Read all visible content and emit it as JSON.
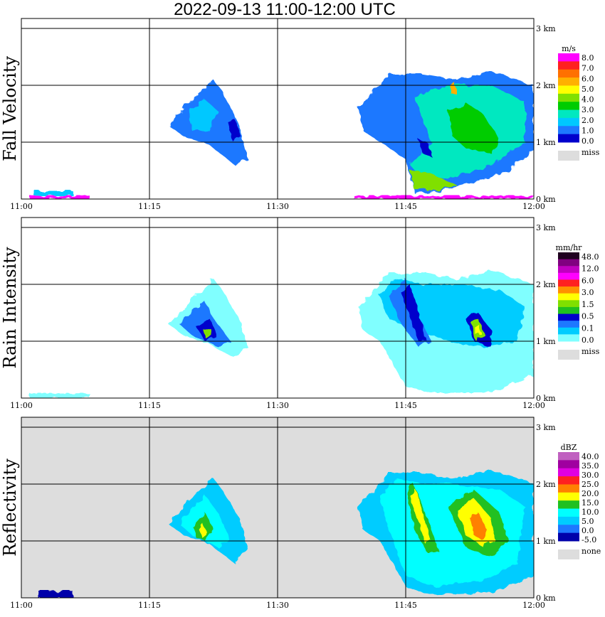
{
  "title": "2022-09-13  11:00-12:00 UTC",
  "x_ticks": [
    "11:00",
    "11:15",
    "11:30",
    "11:45",
    "12:00"
  ],
  "y_ticks": [
    "0 km",
    "1 km",
    "2 km",
    "3 km"
  ],
  "missing_color": "#dddddd",
  "chart_data": [
    {
      "type": "heatmap",
      "ylabel": "Fall Velocity",
      "colorbar": {
        "unit": "m/s",
        "labels": [
          "8.0",
          "7.0",
          "6.0",
          "5.0",
          "4.0",
          "3.0",
          "2.0",
          "1.0",
          "0.0"
        ],
        "colors": [
          "#ff00ff",
          "#ff2020",
          "#ff7000",
          "#ffb000",
          "#ffff00",
          "#80e000",
          "#00cc00",
          "#00e8c0",
          "#00c8ff",
          "#1e78ff",
          "#0000cc"
        ],
        "missing_label": "miss"
      },
      "x_range_minutes": [
        0,
        60
      ],
      "y_range_km": [
        0,
        3
      ],
      "background": "#ffffff",
      "regions": [
        {
          "name": "echo-1",
          "t": [
            17,
            26
          ],
          "z": [
            0.9,
            2.2
          ],
          "value": "1.0-3.0"
        },
        {
          "name": "echo-2",
          "t": [
            39,
            60
          ],
          "z": [
            0.1,
            2.2
          ],
          "value": "1.0-5.0"
        },
        {
          "name": "surface",
          "t": [
            1,
            60
          ],
          "z": [
            0,
            0.08
          ],
          "value": "8.0"
        }
      ]
    },
    {
      "type": "heatmap",
      "ylabel": "Rain Intensity",
      "colorbar": {
        "unit": "mm/hr",
        "labels": [
          "48.0",
          "12.0",
          "6.0",
          "3.0",
          "1.5",
          "0.5",
          "0.1",
          "0.0"
        ],
        "colors": [
          "#200020",
          "#800080",
          "#c000c0",
          "#ff00ff",
          "#ff2020",
          "#ff9000",
          "#ffff00",
          "#80e000",
          "#20c020",
          "#0000cc",
          "#1e78ff",
          "#00ccff",
          "#80ffff"
        ],
        "missing_label": "miss"
      },
      "x_range_minutes": [
        0,
        60
      ],
      "y_range_km": [
        0,
        3
      ],
      "background": "#ffffff",
      "regions": [
        {
          "name": "echo-1",
          "t": [
            17,
            26
          ],
          "z": [
            0.7,
            2.1
          ],
          "value": "0.5-3.0"
        },
        {
          "name": "echo-2",
          "t": [
            39,
            60
          ],
          "z": [
            0.1,
            2.2
          ],
          "value": "0.1-3.0"
        },
        {
          "name": "surface",
          "t": [
            1,
            8
          ],
          "z": [
            0,
            0.08
          ],
          "value": "0.1"
        }
      ]
    },
    {
      "type": "heatmap",
      "ylabel": "Reflectivity",
      "colorbar": {
        "unit": "dBZ",
        "labels": [
          "40.0",
          "35.0",
          "30.0",
          "25.0",
          "20.0",
          "15.0",
          "10.0",
          "5.0",
          "0.0",
          "-5.0"
        ],
        "colors": [
          "#c060c0",
          "#a000a0",
          "#e000e0",
          "#ff2020",
          "#ff8000",
          "#ffff00",
          "#20c020",
          "#00ffff",
          "#00ccff",
          "#1e78ff",
          "#0000aa"
        ],
        "missing_label": "none"
      },
      "x_range_minutes": [
        0,
        60
      ],
      "y_range_km": [
        0,
        3
      ],
      "background": "#dddddd",
      "regions": [
        {
          "name": "echo-1",
          "t": [
            17,
            26
          ],
          "z": [
            0.6,
            2.2
          ],
          "value": "0.0-20.0"
        },
        {
          "name": "echo-2",
          "t": [
            39,
            60
          ],
          "z": [
            0.05,
            2.2
          ],
          "value": "0.0-30.0"
        },
        {
          "name": "surface",
          "t": [
            2,
            6
          ],
          "z": [
            0,
            0.12
          ],
          "value": "-5.0"
        }
      ]
    }
  ]
}
